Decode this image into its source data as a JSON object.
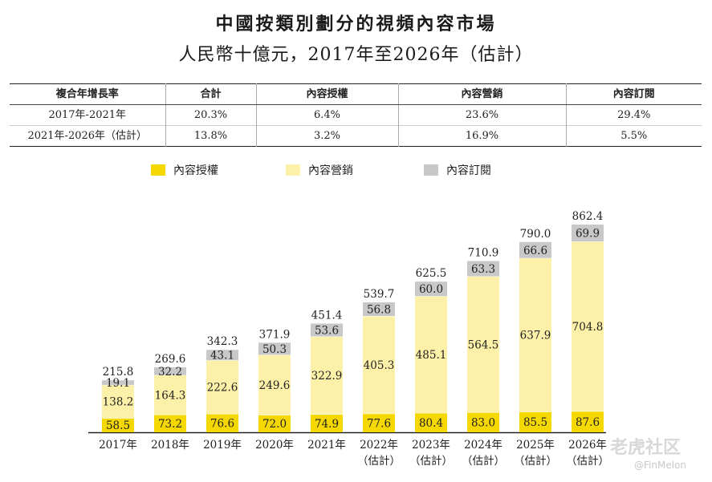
{
  "title": "中國按類別劃分的視頻內容市場",
  "subtitle": "人民幣十億元，2017年至2026年（估計）",
  "cagr_table": {
    "headers": [
      "複合年增長率",
      "合計",
      "內容授權",
      "內容營銷",
      "內容訂閱"
    ],
    "rows": [
      [
        "2017年-2021年",
        "20.3%",
        "6.4%",
        "23.6%",
        "29.4%"
      ],
      [
        "2021年-2026年（估計）",
        "13.8%",
        "3.2%",
        "16.9%",
        "5.5%"
      ]
    ]
  },
  "legend": [
    {
      "label": "內容授權",
      "color": "#f5d800"
    },
    {
      "label": "內容營銷",
      "color": "#fdf0a8"
    },
    {
      "label": "內容訂閱",
      "color": "#c8c8c8"
    }
  ],
  "chart_data": {
    "type": "bar",
    "stacked": true,
    "categories": [
      "2017年",
      "2018年",
      "2019年",
      "2020年",
      "2021年",
      "2022年",
      "2023年",
      "2024年",
      "2025年",
      "2026年"
    ],
    "category_notes": [
      "",
      "",
      "",
      "",
      "",
      "（估計）",
      "（估計）",
      "（估計）",
      "（估計）",
      "（估計）"
    ],
    "series": [
      {
        "name": "內容授權",
        "color": "#f5d800",
        "values": [
          58.5,
          73.2,
          76.6,
          72.0,
          74.9,
          77.6,
          80.4,
          83.0,
          85.5,
          87.6
        ]
      },
      {
        "name": "內容營銷",
        "color": "#fdf0a8",
        "values": [
          138.2,
          164.3,
          222.6,
          249.6,
          322.9,
          405.3,
          485.1,
          564.5,
          637.9,
          704.8
        ]
      },
      {
        "name": "內容訂閱",
        "color": "#c8c8c8",
        "values": [
          19.1,
          32.2,
          43.1,
          50.3,
          53.6,
          56.8,
          60.0,
          63.3,
          66.6,
          69.9
        ]
      }
    ],
    "totals": [
      215.8,
      269.6,
      342.3,
      371.9,
      451.4,
      539.7,
      625.5,
      710.9,
      790.0,
      862.4
    ],
    "legend_position": "top",
    "grid": false
  },
  "watermark": {
    "brand": "老虎社区",
    "handle": "@FinMelon"
  }
}
